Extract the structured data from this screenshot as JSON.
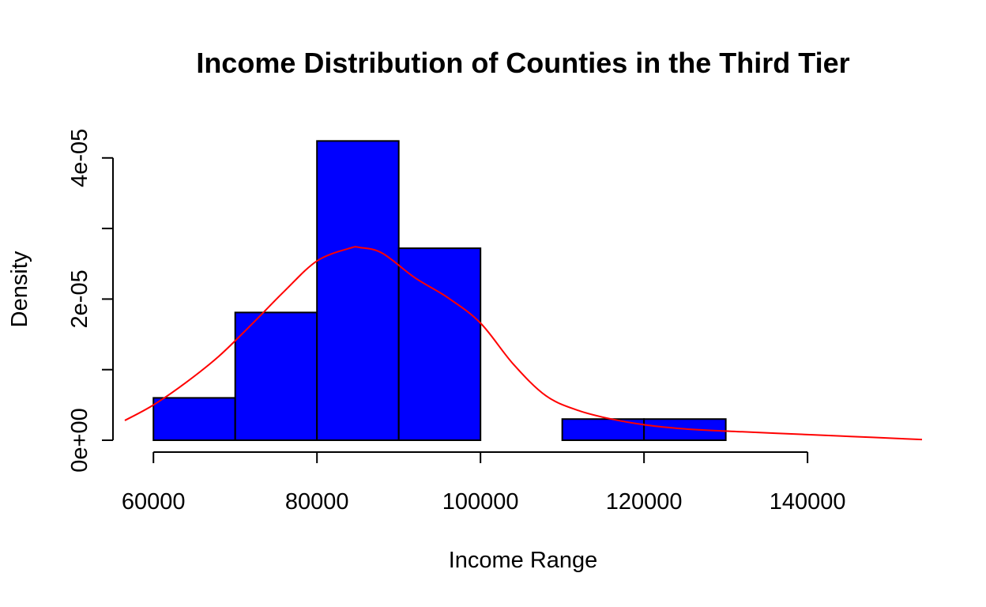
{
  "chart_data": {
    "type": "bar",
    "title": "Income Distribution of Counties in the Third Tier",
    "xlabel": "Income Range",
    "ylabel": "Density",
    "bins": [
      {
        "from": 60000,
        "to": 70000,
        "value": 6e-06
      },
      {
        "from": 70000,
        "to": 80000,
        "value": 1.81e-05
      },
      {
        "from": 80000,
        "to": 90000,
        "value": 4.24e-05
      },
      {
        "from": 90000,
        "to": 100000,
        "value": 2.72e-05
      },
      {
        "from": 100000,
        "to": 110000,
        "value": 0.0
      },
      {
        "from": 110000,
        "to": 120000,
        "value": 3e-06
      },
      {
        "from": 120000,
        "to": 130000,
        "value": 3e-06
      }
    ],
    "xlim": [
      56500,
      154000
    ],
    "ylim": [
      0,
      4.3e-05
    ],
    "xticks": [
      60000,
      80000,
      100000,
      120000,
      140000
    ],
    "xtick_labels": [
      "60000",
      "80000",
      "100000",
      "120000",
      "140000"
    ],
    "yticks": [
      0,
      1e-05,
      2e-05,
      3e-05,
      4e-05
    ],
    "ytick_labels": [
      "0e+00",
      "",
      "2e-05",
      "",
      "4e-05"
    ],
    "density_curve": {
      "x": [
        56500,
        60000,
        64000,
        68000,
        72000,
        76000,
        80000,
        84000,
        85300,
        88000,
        92000,
        96000,
        100000,
        104000,
        108000,
        112000,
        116000,
        120000,
        124000,
        128000,
        132000,
        136000,
        140000,
        144000,
        148000,
        154000
      ],
      "y": [
        2.8e-06,
        5e-06,
        8.2e-06,
        1.19e-05,
        1.64e-05,
        2.11e-05,
        2.54e-05,
        2.72e-05,
        2.73e-05,
        2.65e-05,
        2.3e-05,
        2.02e-05,
        1.66e-05,
        1.08e-05,
        6.3e-06,
        4.2e-06,
        3e-06,
        2.2e-06,
        1.7e-06,
        1.4e-06,
        1.2e-06,
        1e-06,
        8e-07,
        6e-07,
        4e-07,
        1e-07
      ]
    },
    "grid": false,
    "legend": "none",
    "bar_color": "#0000ff",
    "curve_color": "#ff0000"
  }
}
